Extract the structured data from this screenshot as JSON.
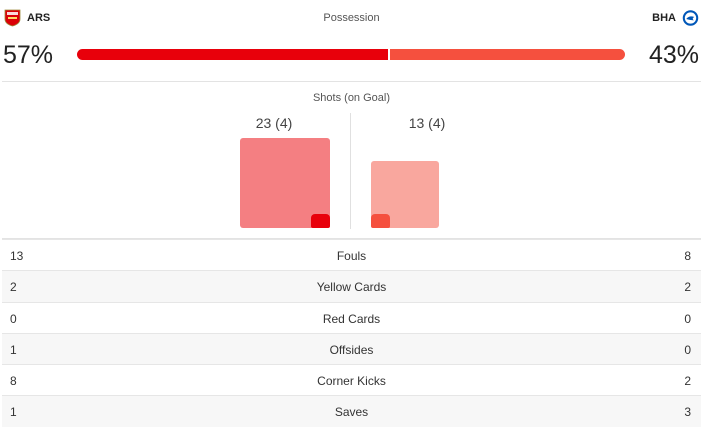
{
  "home": {
    "abbr": "ARS",
    "possession": "57%",
    "possession_value": 57,
    "shots_label": "23 (4)",
    "shots": 23,
    "shots_on_goal": 4,
    "color": "#e8000b",
    "color_light": "#f47f82"
  },
  "away": {
    "abbr": "BHA",
    "possession": "43%",
    "possession_value": 43,
    "shots_label": "13 (4)",
    "shots": 13,
    "shots_on_goal": 4,
    "color": "#f5503e",
    "color_light": "#f9a79e"
  },
  "possession_title": "Possession",
  "shots_title": "Shots (on Goal)",
  "stats": [
    {
      "label": "Fouls",
      "home": "13",
      "away": "8"
    },
    {
      "label": "Yellow Cards",
      "home": "2",
      "away": "2"
    },
    {
      "label": "Red Cards",
      "home": "0",
      "away": "0"
    },
    {
      "label": "Offsides",
      "home": "1",
      "away": "0"
    },
    {
      "label": "Corner Kicks",
      "home": "8",
      "away": "2"
    },
    {
      "label": "Saves",
      "home": "1",
      "away": "3"
    }
  ]
}
